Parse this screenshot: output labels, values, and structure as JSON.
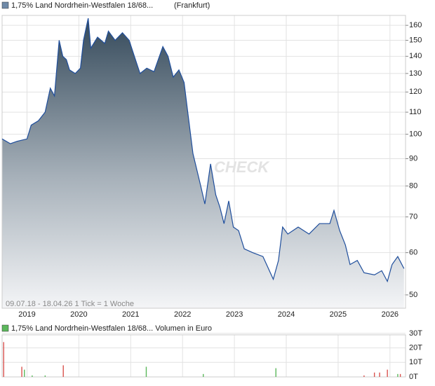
{
  "header": {
    "title": "1,75% Land Nordrhein-Westfalen 18/68...",
    "exchange": "(Frankfurt)"
  },
  "chart_data": [
    {
      "type": "area",
      "log_scale": true,
      "grid": true,
      "color": "#1f4e9c",
      "footer": "09.07.18 - 18.04.26   1 Tick = 1 Woche",
      "watermark": "CHECK",
      "x": [
        2018.52,
        2018.68,
        2018.81,
        2019.0,
        2019.08,
        2019.22,
        2019.35,
        2019.45,
        2019.53,
        2019.62,
        2019.69,
        2019.76,
        2019.82,
        2019.93,
        2020.03,
        2020.09,
        2020.18,
        2020.23,
        2020.36,
        2020.5,
        2020.57,
        2020.7,
        2020.84,
        2020.97,
        2021.07,
        2021.18,
        2021.31,
        2021.45,
        2021.62,
        2021.72,
        2021.82,
        2021.93,
        2022.03,
        2022.1,
        2022.2,
        2022.35,
        2022.43,
        2022.54,
        2022.64,
        2022.72,
        2022.8,
        2022.89,
        2022.98,
        2023.08,
        2023.19,
        2023.35,
        2023.55,
        2023.75,
        2023.85,
        2023.93,
        2024.03,
        2024.23,
        2024.44,
        2024.64,
        2024.84,
        2024.92,
        2025.03,
        2025.14,
        2025.23,
        2025.37,
        2025.5,
        2025.7,
        2025.84,
        2025.95,
        2026.04,
        2026.15,
        2026.27
      ],
      "values": [
        98,
        96,
        97,
        98,
        104,
        106,
        110,
        122,
        118,
        150,
        140,
        138,
        132,
        130,
        133,
        150,
        165,
        145,
        152,
        148,
        156,
        150,
        155,
        150,
        140,
        130,
        133,
        131,
        146,
        140,
        128,
        132,
        125,
        110,
        92,
        80,
        74,
        88,
        77,
        73,
        68,
        75,
        67,
        66,
        61,
        60,
        59,
        53.5,
        58,
        67,
        65,
        67,
        65,
        68,
        68,
        72,
        66,
        62,
        57,
        58,
        55,
        54.5,
        55.5,
        53,
        57,
        59,
        56
      ],
      "xlim": [
        2018.52,
        2026.3
      ],
      "xticks": [
        2019,
        2020,
        2021,
        2022,
        2023,
        2024,
        2025,
        2026
      ],
      "ylim": [
        47.2,
        167
      ],
      "yticks": [
        50,
        60,
        70,
        80,
        90,
        100,
        110,
        120,
        130,
        140,
        150,
        160
      ]
    },
    {
      "type": "bar",
      "title": "1,75% Land Nordrhein-Westfalen 18/68... Volumen in Euro",
      "grid": true,
      "x": [
        2018.55,
        2018.9,
        2018.95,
        2019.1,
        2019.35,
        2019.7,
        2021.3,
        2022.4,
        2023.8,
        2025.5,
        2025.7,
        2025.8,
        2025.95,
        2026.15,
        2026.2
      ],
      "values": [
        24,
        7,
        5,
        1,
        1,
        8,
        7,
        2,
        6,
        1,
        3,
        3,
        5,
        2,
        2
      ],
      "colors": [
        "#d9534f",
        "#d9534f",
        "#5cb85c",
        "#5cb85c",
        "#5cb85c",
        "#d9534f",
        "#5cb85c",
        "#5cb85c",
        "#5cb85c",
        "#d9534f",
        "#d9534f",
        "#d9534f",
        "#d9534f",
        "#5cb85c",
        "#d9534f"
      ],
      "xlim": [
        2018.52,
        2026.3
      ],
      "ylim": [
        0,
        29
      ],
      "yticks": [
        {
          "value": 0,
          "label": "0T"
        },
        {
          "value": 10,
          "label": "10T"
        },
        {
          "value": 20,
          "label": "20T"
        },
        {
          "value": 30,
          "label": "30T"
        }
      ]
    }
  ]
}
